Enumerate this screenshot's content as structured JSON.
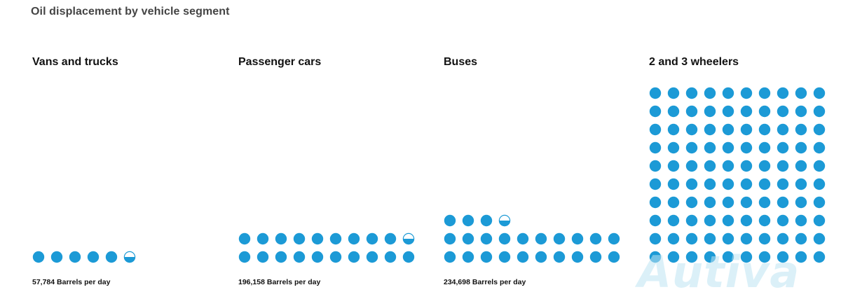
{
  "title": "Oil displacement by vehicle segment",
  "dot_color": "#1c9ad6",
  "watermark": "Autiva",
  "chart_data": {
    "type": "pictogram",
    "title": "Oil displacement by vehicle segment",
    "unit": "Barrels per day",
    "legend": "none",
    "grid": false,
    "categories": [
      "Vans and trucks",
      "Passenger cars",
      "Buses",
      "2 and 3 wheelers"
    ],
    "series": [
      {
        "values": [
          57784,
          196158,
          234698,
          1000000
        ],
        "captions": [
          "57,784 Barrels per day",
          "196,158 Barrels per day",
          "234,698 Barrels per day",
          ""
        ],
        "dot_counts": [
          5.5,
          19.5,
          23.5,
          100
        ]
      }
    ]
  }
}
